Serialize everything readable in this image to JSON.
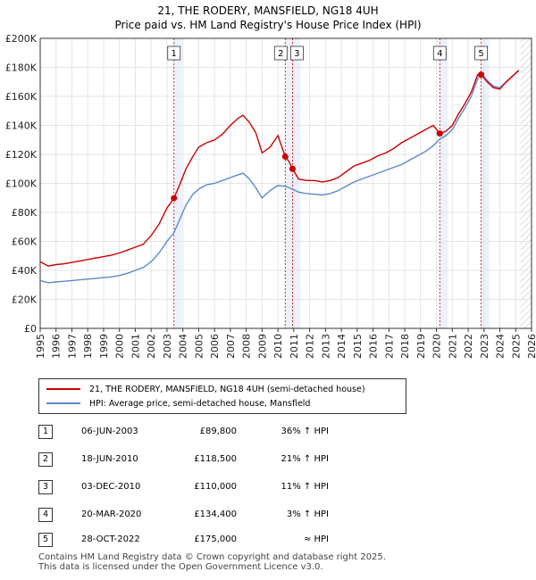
{
  "chart_data": {
    "type": "line",
    "title": "21, THE RODERY, MANSFIELD, NG18 4UH",
    "subtitle": "Price paid vs. HM Land Registry's House Price Index (HPI)",
    "xlabel": "",
    "ylabel": "",
    "xlim": [
      1995,
      2026
    ],
    "ylim": [
      0,
      200000
    ],
    "x_ticks": [
      1995,
      1996,
      1997,
      1998,
      1999,
      2000,
      2001,
      2002,
      2003,
      2004,
      2005,
      2006,
      2007,
      2008,
      2009,
      2010,
      2011,
      2012,
      2013,
      2014,
      2015,
      2016,
      2017,
      2018,
      2019,
      2020,
      2021,
      2022,
      2023,
      2024,
      2025,
      2026
    ],
    "y_ticks": [
      {
        "value": 0,
        "label": "£0"
      },
      {
        "value": 20000,
        "label": "£20K"
      },
      {
        "value": 40000,
        "label": "£40K"
      },
      {
        "value": 60000,
        "label": "£60K"
      },
      {
        "value": 80000,
        "label": "£80K"
      },
      {
        "value": 100000,
        "label": "£100K"
      },
      {
        "value": 120000,
        "label": "£120K"
      },
      {
        "value": 140000,
        "label": "£140K"
      },
      {
        "value": 160000,
        "label": "£160K"
      },
      {
        "value": 180000,
        "label": "£180K"
      },
      {
        "value": 200000,
        "label": "£200K"
      }
    ],
    "grid": true,
    "series": [
      {
        "name": "21, THE RODERY, MANSFIELD, NG18 4UH (semi-detached house)",
        "color": "#cc0000",
        "x": [
          1995.0,
          1995.5,
          1996.0,
          1996.5,
          1997.0,
          1997.5,
          1998.0,
          1998.5,
          1999.0,
          1999.5,
          2000.0,
          2000.5,
          2001.0,
          2001.5,
          2002.0,
          2002.5,
          2003.0,
          2003.44,
          2003.8,
          2004.2,
          2004.6,
          2005.0,
          2005.5,
          2006.0,
          2006.5,
          2007.0,
          2007.5,
          2007.8,
          2008.2,
          2008.6,
          2009.0,
          2009.5,
          2010.0,
          2010.46,
          2010.7,
          2010.92,
          2011.3,
          2011.8,
          2012.3,
          2012.8,
          2013.3,
          2013.8,
          2014.3,
          2014.8,
          2015.3,
          2015.8,
          2016.3,
          2016.8,
          2017.3,
          2017.8,
          2018.3,
          2018.8,
          2019.3,
          2019.8,
          2020.21,
          2020.6,
          2021.0,
          2021.4,
          2021.8,
          2022.2,
          2022.6,
          2022.82,
          2023.2,
          2023.6,
          2024.0,
          2024.4,
          2024.8,
          2025.2
        ],
        "y": [
          46000,
          43000,
          44000,
          44500,
          45500,
          46500,
          47500,
          48500,
          49500,
          50500,
          52000,
          54000,
          56000,
          58000,
          64000,
          72000,
          83000,
          89800,
          99000,
          110000,
          118000,
          125000,
          128000,
          130000,
          134000,
          140000,
          145000,
          147000,
          142000,
          135000,
          121000,
          125000,
          133000,
          118500,
          115000,
          110000,
          103000,
          102000,
          102000,
          101000,
          102000,
          104000,
          108000,
          112000,
          114000,
          116000,
          119000,
          121000,
          124000,
          128000,
          131000,
          134000,
          137000,
          140000,
          134400,
          136000,
          140000,
          148000,
          155000,
          163000,
          175000,
          175000,
          170000,
          166000,
          165000,
          170000,
          174000,
          178000
        ]
      },
      {
        "name": "HPI: Average price, semi-detached house, Mansfield",
        "color": "#5b8ac9",
        "x": [
          1995.0,
          1995.5,
          1996.0,
          1996.5,
          1997.0,
          1997.5,
          1998.0,
          1998.5,
          1999.0,
          1999.5,
          2000.0,
          2000.5,
          2001.0,
          2001.5,
          2002.0,
          2002.5,
          2003.0,
          2003.44,
          2003.8,
          2004.2,
          2004.6,
          2005.0,
          2005.5,
          2006.0,
          2006.5,
          2007.0,
          2007.5,
          2007.8,
          2008.2,
          2008.6,
          2009.0,
          2009.5,
          2010.0,
          2010.46,
          2010.7,
          2010.92,
          2011.3,
          2011.8,
          2012.3,
          2012.8,
          2013.3,
          2013.8,
          2014.3,
          2014.8,
          2015.3,
          2015.8,
          2016.3,
          2016.8,
          2017.3,
          2017.8,
          2018.3,
          2018.8,
          2019.3,
          2019.8,
          2020.21,
          2020.6,
          2021.0,
          2021.4,
          2021.8,
          2022.2,
          2022.6,
          2022.82,
          2023.2,
          2023.6,
          2024.0,
          2024.4,
          2024.8,
          2025.2
        ],
        "y": [
          33000,
          31500,
          32000,
          32500,
          33000,
          33500,
          34000,
          34500,
          35000,
          35500,
          36500,
          38000,
          40000,
          42000,
          46000,
          52000,
          60000,
          66000,
          75000,
          85000,
          92000,
          96000,
          99000,
          100000,
          102000,
          104000,
          106000,
          107000,
          103000,
          97000,
          90000,
          95000,
          98500,
          98000,
          97000,
          96000,
          94000,
          93000,
          92500,
          92000,
          93000,
          95000,
          98000,
          101000,
          103000,
          105000,
          107000,
          109000,
          111000,
          113000,
          116000,
          119000,
          122000,
          126000,
          130500,
          133000,
          137000,
          145000,
          152000,
          160000,
          172000,
          176000,
          171000,
          167000,
          166000,
          170000,
          174000,
          178000
        ]
      }
    ],
    "sales": [
      {
        "label": "1",
        "x": 2003.44,
        "price": 89800
      },
      {
        "label": "2",
        "x": 2010.46,
        "price": 118500
      },
      {
        "label": "3",
        "x": 2010.92,
        "price": 110000
      },
      {
        "label": "4",
        "x": 2020.21,
        "price": 134400
      },
      {
        "label": "5",
        "x": 2022.82,
        "price": 175000
      }
    ],
    "shade_color": "#dde6f7",
    "accent_color": "#cc0000"
  },
  "legend": {
    "property_label": "21, THE RODERY, MANSFIELD, NG18 4UH (semi-detached house)",
    "hpi_label": "HPI: Average price, semi-detached house, Mansfield"
  },
  "sales_table": [
    {
      "num": "1",
      "date": "06-JUN-2003",
      "price": "£89,800",
      "hpi": "36% ↑ HPI"
    },
    {
      "num": "2",
      "date": "18-JUN-2010",
      "price": "£118,500",
      "hpi": "21% ↑ HPI"
    },
    {
      "num": "3",
      "date": "03-DEC-2010",
      "price": "£110,000",
      "hpi": "11% ↑ HPI"
    },
    {
      "num": "4",
      "date": "20-MAR-2020",
      "price": "£134,400",
      "hpi": "3% ↑ HPI"
    },
    {
      "num": "5",
      "date": "28-OCT-2022",
      "price": "£175,000",
      "hpi": "≈ HPI"
    }
  ],
  "footer": {
    "line1": "Contains HM Land Registry data © Crown copyright and database right 2025.",
    "line2": "This data is licensed under the Open Government Licence v3.0."
  }
}
